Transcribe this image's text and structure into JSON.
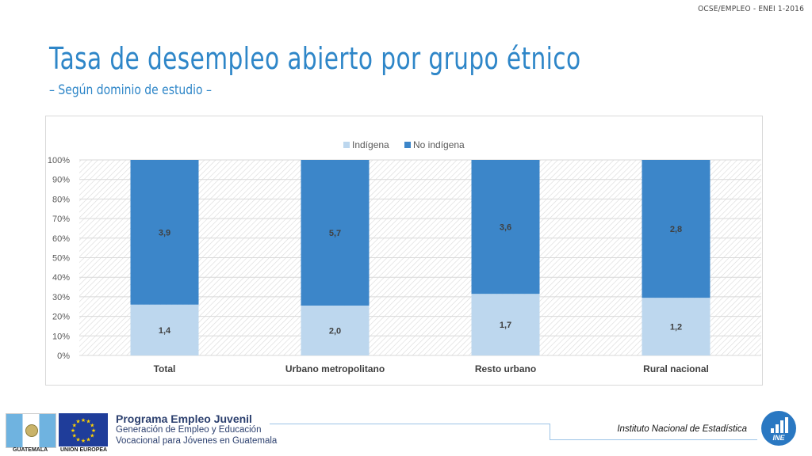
{
  "header_tag": "OCSE/EMPLEO -  ENEI 1-2016",
  "title": "Tasa de desempleo abierto por grupo étnico",
  "subtitle": "– Según dominio de estudio –",
  "chart_data": {
    "type": "bar",
    "stacked": "percent",
    "title": "",
    "xlabel": "",
    "ylabel": "",
    "ylim": [
      0,
      100
    ],
    "y_ticks": [
      "0%",
      "10%",
      "20%",
      "30%",
      "40%",
      "50%",
      "60%",
      "70%",
      "80%",
      "90%",
      "100%"
    ],
    "categories": [
      "Total",
      "Urbano metropolitano",
      "Resto urbano",
      "Rural nacional"
    ],
    "series": [
      {
        "name": "Indígena",
        "color": "#bdd7ee",
        "labels": [
          "1,4",
          "2,0",
          "1,7",
          "1,2"
        ],
        "values": [
          1.4,
          2.0,
          1.7,
          1.2
        ],
        "percent": [
          26,
          25.5,
          31.5,
          29.5
        ]
      },
      {
        "name": "No indígena",
        "color": "#3c86c9",
        "labels": [
          "3,9",
          "5,7",
          "3,6",
          "2,8"
        ],
        "values": [
          3.9,
          5.7,
          3.6,
          2.8
        ],
        "percent": [
          74,
          74.5,
          68.5,
          70.5
        ]
      }
    ],
    "legend_position": "top-center",
    "grid": true
  },
  "footer": {
    "program_title": "Programa Empleo Juvenil",
    "program_line1": "Generación de Empleo y Educación",
    "program_line2": "Vocacional para Jóvenes en Guatemala",
    "flag_gt_label": "GUATEMALA",
    "flag_eu_label": "UNIÓN EUROPEA",
    "institution": "Instituto Nacional de Estadística",
    "ine_logo_text": "INE"
  }
}
